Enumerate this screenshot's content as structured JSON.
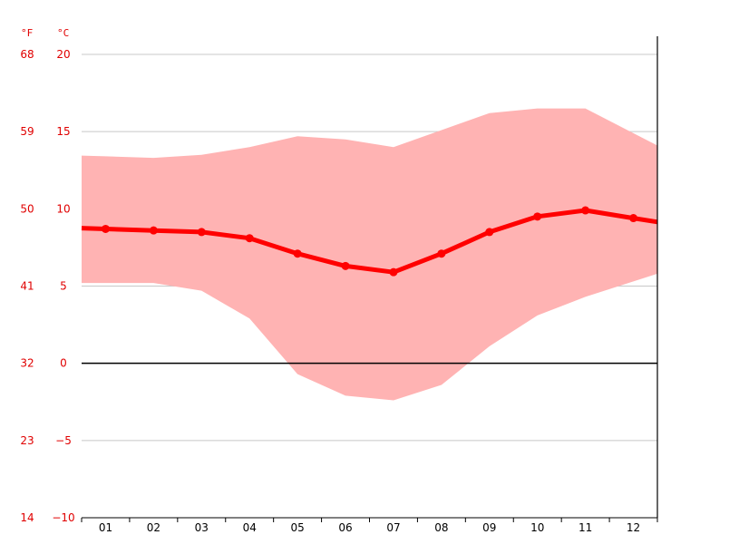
{
  "chart_data": {
    "type": "area",
    "categories": [
      "01",
      "02",
      "03",
      "04",
      "05",
      "06",
      "07",
      "08",
      "09",
      "10",
      "11",
      "12"
    ],
    "ylim": [
      -10,
      20
    ],
    "y_ticks_c": [
      20,
      15,
      10,
      5,
      0,
      -5,
      -10
    ],
    "y_tick_labels_c": [
      "20",
      "15",
      "10",
      "5",
      "0",
      "−5",
      "−10"
    ],
    "y_tick_labels_f": [
      "68",
      "59",
      "50",
      "41",
      "32",
      "23",
      "14"
    ],
    "unit_f": "°F",
    "unit_c": "°C",
    "grid": true,
    "series": [
      {
        "values": [
          8.7,
          8.6,
          8.5,
          8.1,
          7.1,
          6.3,
          5.9,
          7.1,
          8.5,
          9.5,
          9.9,
          9.4
        ]
      },
      {
        "values": [
          13.4,
          13.3,
          13.5,
          14.0,
          14.7,
          14.5,
          14.0,
          15.1,
          16.2,
          16.5,
          16.5,
          14.9
        ]
      },
      {
        "values": [
          5.2,
          5.2,
          4.7,
          2.9,
          -0.7,
          -2.1,
          -2.4,
          -1.4,
          1.1,
          3.1,
          4.3,
          5.3
        ]
      }
    ],
    "colors": {
      "range_fill": "#ffb3b3",
      "mean_line": "#ff0000",
      "grid": "#c8c8c8",
      "tick_text": "#e00000",
      "zero_line": "#000000"
    }
  }
}
